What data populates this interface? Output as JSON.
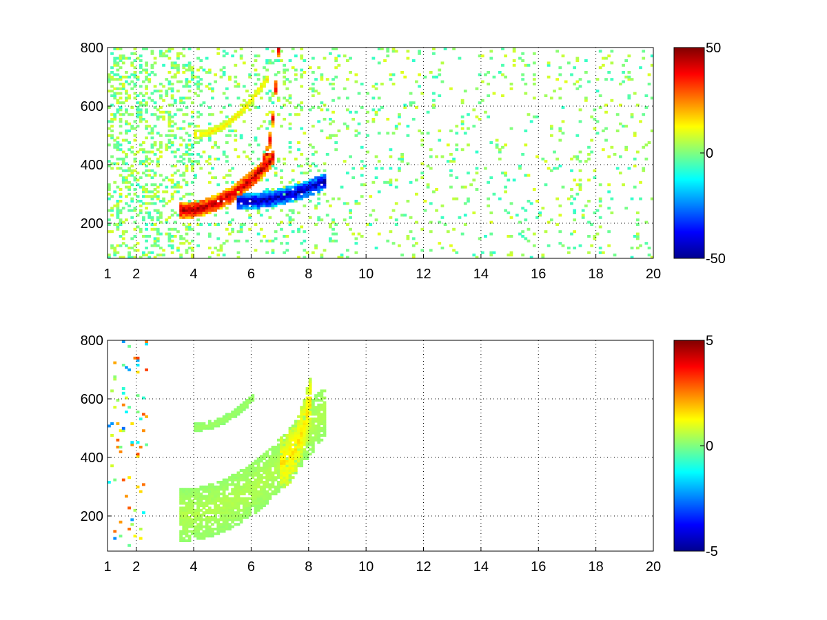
{
  "chart_data": [
    {
      "type": "heatmap",
      "title": "",
      "xlabel": "",
      "ylabel": "",
      "xlim": [
        1,
        20
      ],
      "ylim": [
        80,
        800
      ],
      "x_ticks": [
        1,
        2,
        4,
        6,
        8,
        10,
        12,
        14,
        16,
        18,
        20
      ],
      "x_tick_labels": [
        "1",
        "2",
        "4",
        "6",
        "8",
        "10",
        "12",
        "14",
        "16",
        "18",
        "20"
      ],
      "y_ticks": [
        200,
        400,
        600,
        800
      ],
      "y_tick_labels": [
        "200",
        "400",
        "600",
        "800"
      ],
      "grid": true,
      "colormap": "jet",
      "clim": [
        -50,
        50
      ],
      "colorbar_ticks": [
        -50,
        0,
        50
      ],
      "colorbar_tick_labels": [
        "-50",
        "0",
        "50"
      ],
      "features": [
        {
          "kind": "ridge",
          "x_start": 3.5,
          "x_end": 6.7,
          "y_at_start": 240,
          "y_at_end": 420,
          "value": 45
        },
        {
          "kind": "ridge",
          "x_start": 6.4,
          "x_end": 6.9,
          "y_at_start": 420,
          "y_at_end": 790,
          "value": 40
        },
        {
          "kind": "ridge",
          "x_start": 5.5,
          "x_end": 8.5,
          "y_at_start": 270,
          "y_at_end": 340,
          "value": -45
        },
        {
          "kind": "band",
          "x_start": 4.0,
          "x_end": 6.5,
          "y_at_start": 500,
          "y_at_end": 690,
          "value": 15
        }
      ]
    },
    {
      "type": "heatmap",
      "title": "",
      "xlabel": "",
      "ylabel": "",
      "xlim": [
        1,
        20
      ],
      "ylim": [
        80,
        800
      ],
      "x_ticks": [
        1,
        2,
        4,
        6,
        8,
        10,
        12,
        14,
        16,
        18,
        20
      ],
      "x_tick_labels": [
        "1",
        "2",
        "4",
        "6",
        "8",
        "10",
        "12",
        "14",
        "16",
        "18",
        "20"
      ],
      "y_ticks": [
        200,
        400,
        600,
        800
      ],
      "y_tick_labels": [
        "200",
        "400",
        "600",
        "800"
      ],
      "grid": true,
      "colormap": "jet",
      "clim": [
        -5,
        5
      ],
      "colorbar_ticks": [
        -5,
        0,
        5
      ],
      "colorbar_tick_labels": [
        "-5",
        "0",
        "5"
      ],
      "features": [
        {
          "kind": "blob",
          "x_start": 3.5,
          "x_end": 8.5,
          "y_at_start": 200,
          "y_at_end": 560,
          "value": 0.5
        },
        {
          "kind": "blob",
          "x_start": 7.0,
          "x_end": 8.0,
          "y_at_start": 380,
          "y_at_end": 580,
          "value": 1.5
        },
        {
          "kind": "band",
          "x_start": 4.0,
          "x_end": 6.0,
          "y_at_start": 500,
          "y_at_end": 600,
          "value": 0.3
        }
      ]
    }
  ]
}
